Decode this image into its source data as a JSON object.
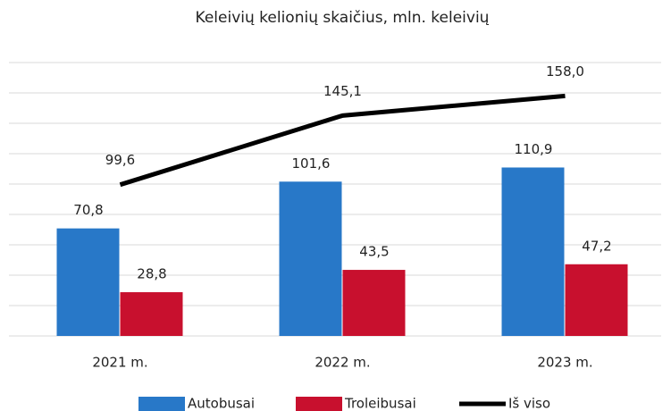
{
  "chart_data": {
    "type": "bar",
    "title": "Keleivių kelionių skaičius, mln. keleivių",
    "categories": [
      "2021 m.",
      "2022 m.",
      "2023 m."
    ],
    "series": [
      {
        "name": "Autobusai",
        "type": "bar",
        "color": "#2878c8",
        "values": [
          70.8,
          101.6,
          110.9
        ],
        "value_labels": [
          "70,8",
          "101,6",
          "110,9"
        ]
      },
      {
        "name": "Troleibusai",
        "type": "bar",
        "color": "#c8102e",
        "values": [
          28.8,
          43.5,
          47.2
        ],
        "value_labels": [
          "28,8",
          "43,5",
          "47,2"
        ]
      },
      {
        "name": "Iš viso",
        "type": "line",
        "color": "#000000",
        "values": [
          99.6,
          145.1,
          158.0
        ],
        "value_labels": [
          "99,6",
          "145,1",
          "158,0"
        ]
      }
    ],
    "ylim": [
      0,
      180
    ],
    "yticks": [
      0,
      20,
      40,
      60,
      80,
      100,
      120,
      140,
      160,
      180
    ],
    "grid": true,
    "legend": "bottom"
  }
}
